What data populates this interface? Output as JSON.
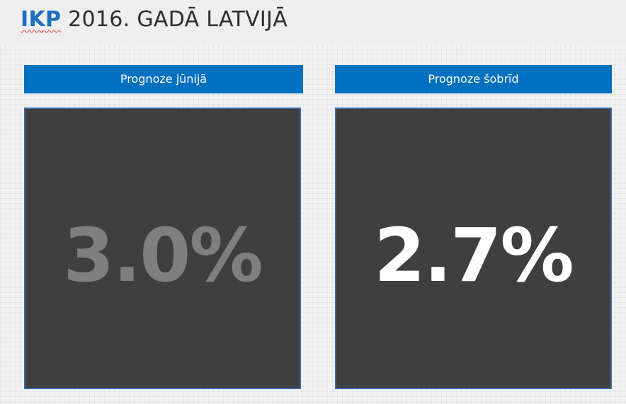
{
  "title": {
    "accent": "IKP",
    "rest": " 2016. GADĀ LATVIJĀ"
  },
  "panels": [
    {
      "header": "Prognoze jūnijā",
      "value": "3.0%",
      "value_color": "#7f7f7f"
    },
    {
      "header": "Prognoze šobrīd",
      "value": "2.7%",
      "value_color": "#ffffff"
    }
  ],
  "colors": {
    "header_blue": "#0070c0",
    "panel_background": "#3f3f3f",
    "panel_border": "#3a6aa8",
    "title_accent": "#1f6fbf"
  }
}
